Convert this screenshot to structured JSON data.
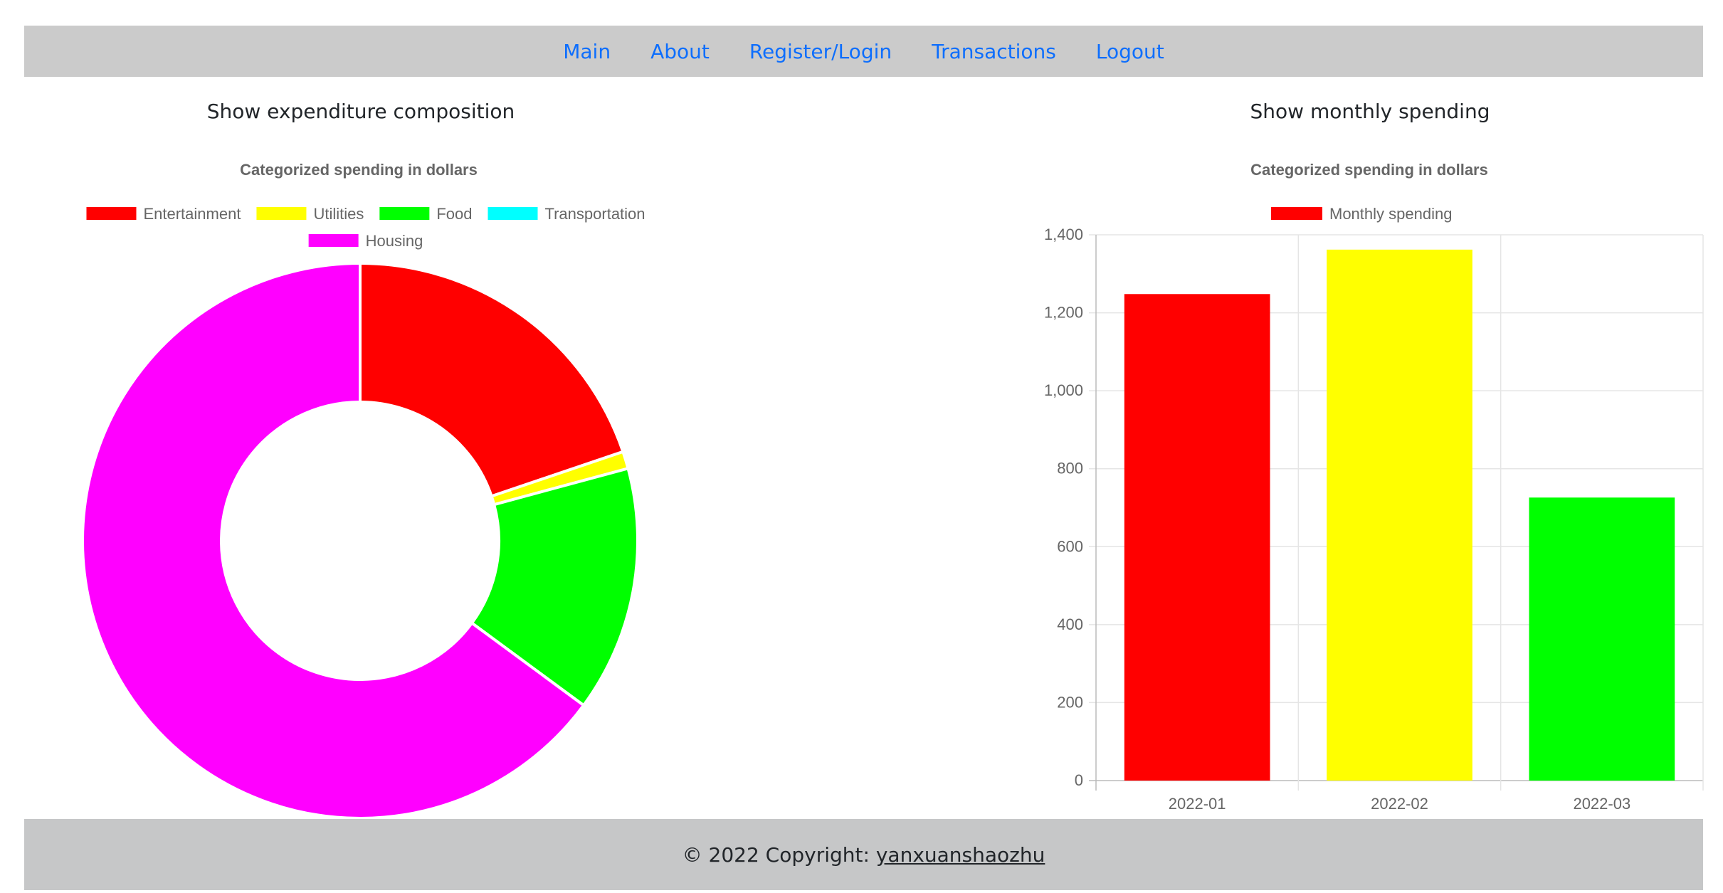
{
  "nav": {
    "items": [
      {
        "label": "Main",
        "name": "nav-main"
      },
      {
        "label": "About",
        "name": "nav-about"
      },
      {
        "label": "Register/Login",
        "name": "nav-register-login"
      },
      {
        "label": "Transactions",
        "name": "nav-transactions"
      },
      {
        "label": "Logout",
        "name": "nav-logout"
      }
    ],
    "link_color": "#0d6efd"
  },
  "left_panel": {
    "heading": "Show expenditure composition"
  },
  "right_panel": {
    "heading": "Show monthly spending"
  },
  "footer": {
    "prefix": "© 2022 Copyright: ",
    "link_text": "yanxuanshaozhu"
  },
  "chart_data": [
    {
      "type": "pie",
      "donut": true,
      "title": "Categorized spending in dollars",
      "legend_position": "top",
      "slices": [
        {
          "label": "Entertainment",
          "value": 19.8,
          "color": "#ff0000"
        },
        {
          "label": "Utilities",
          "value": 1.0,
          "color": "#ffff00"
        },
        {
          "label": "Food",
          "value": 14.3,
          "color": "#00ff00"
        },
        {
          "label": "Transportation",
          "value": 0,
          "color": "#00ffff"
        },
        {
          "label": "Housing",
          "value": 64.9,
          "color": "#ff00ff"
        }
      ]
    },
    {
      "type": "bar",
      "title": "Categorized spending in dollars",
      "legend_position": "top",
      "categories": [
        "2022-01",
        "2022-02",
        "2022-03"
      ],
      "series": [
        {
          "name": "Monthly spending",
          "values": [
            1248,
            1362,
            726
          ],
          "colors": [
            "#ff0000",
            "#ffff00",
            "#00ff00"
          ],
          "legend_color": "#ff0000"
        }
      ],
      "ylim": [
        0,
        1400
      ],
      "yticks": [
        0,
        200,
        400,
        600,
        800,
        1000,
        1200,
        1400
      ],
      "ytick_labels": [
        "0",
        "200",
        "400",
        "600",
        "800",
        "1,000",
        "1,200",
        "1,400"
      ],
      "grid": true
    }
  ]
}
